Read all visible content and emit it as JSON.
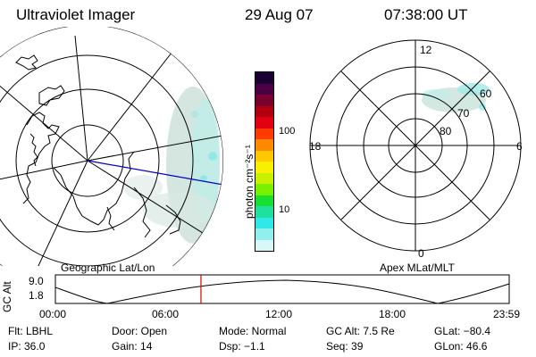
{
  "header": {
    "title": "Ultraviolet Imager",
    "date": "29 Aug 07",
    "time": "07:38:00 UT"
  },
  "colorbar": {
    "unit_label": "photon cm⁻²s⁻¹",
    "ticks": [
      "100",
      "10"
    ],
    "colors": [
      "#1a0033",
      "#4b0046",
      "#7a0030",
      "#b00010",
      "#e00010",
      "#ff3a00",
      "#ff8a00",
      "#ffc800",
      "#f8f000",
      "#c8f000",
      "#78f000",
      "#18e030",
      "#20e0a0",
      "#30e8e8",
      "#90f0f0",
      "#d8f8f8"
    ]
  },
  "left_panel": {
    "caption": "Geographic Lat/Lon"
  },
  "right_panel": {
    "caption": "Apex MLat/MLT",
    "mlt_labels": [
      "12",
      "18",
      "6",
      "0"
    ],
    "lat_labels": [
      "60",
      "70",
      "80"
    ]
  },
  "timeline": {
    "y_axis_label": "GC Alt",
    "y_ticks": [
      "9.0",
      "1.8"
    ],
    "x_ticks": [
      "00:00",
      "06:00",
      "12:00",
      "18:00",
      "23:59"
    ],
    "current_time_fraction": 0.3208,
    "marker_color": "#e00000"
  },
  "info": {
    "flt": "Flt: LBHL",
    "ip": "IP: 36.0",
    "door": "Door: Open",
    "gain": "Gain: 14",
    "mode": "Mode: Normal",
    "dsp": "Dsp:   −1.1",
    "gc_alt": "GC Alt: 7.5 Re",
    "seq": "Seq: 39",
    "glat": "GLat: −80.4",
    "glon": "GLon:  46.6"
  }
}
